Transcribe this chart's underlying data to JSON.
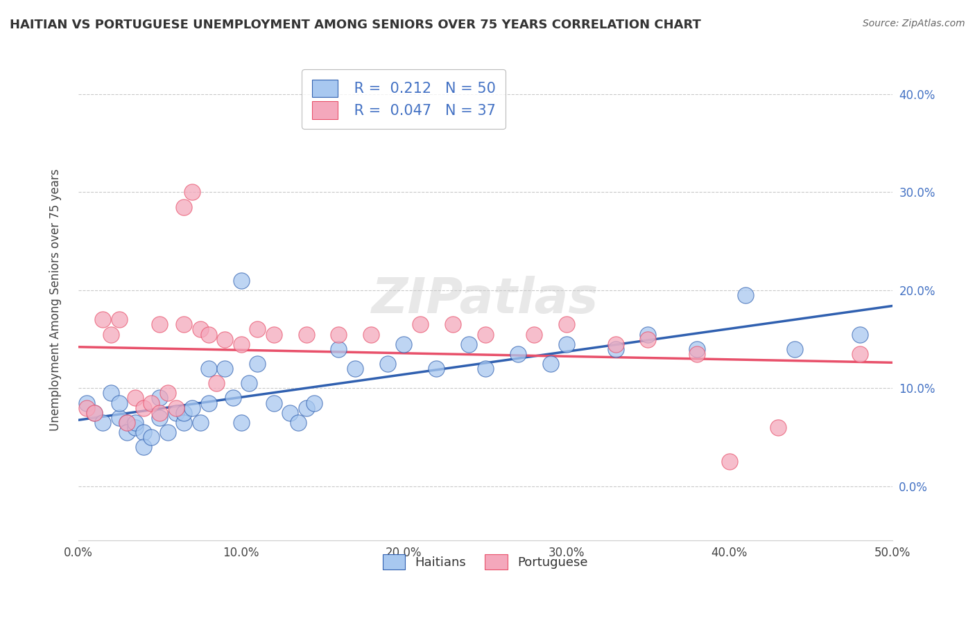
{
  "title": "HAITIAN VS PORTUGUESE UNEMPLOYMENT AMONG SENIORS OVER 75 YEARS CORRELATION CHART",
  "source": "Source: ZipAtlas.com",
  "ylabel": "Unemployment Among Seniors over 75 years",
  "xlim": [
    0.0,
    0.5
  ],
  "ylim": [
    -0.055,
    0.435
  ],
  "haitian_R": "0.212",
  "haitian_N": "50",
  "portuguese_R": "0.047",
  "portuguese_N": "37",
  "haitian_color": "#A8C8F0",
  "portuguese_color": "#F4A8BC",
  "haitian_line_color": "#3060B0",
  "portuguese_line_color": "#E8506A",
  "watermark": "ZIPatlas",
  "legend_label_haitian": "Haitians",
  "legend_label_portuguese": "Portuguese",
  "haitian_x": [
    0.005,
    0.01,
    0.015,
    0.02,
    0.025,
    0.025,
    0.03,
    0.03,
    0.035,
    0.035,
    0.04,
    0.04,
    0.045,
    0.05,
    0.05,
    0.055,
    0.06,
    0.065,
    0.065,
    0.07,
    0.075,
    0.08,
    0.08,
    0.09,
    0.095,
    0.1,
    0.1,
    0.105,
    0.11,
    0.12,
    0.13,
    0.135,
    0.14,
    0.145,
    0.16,
    0.17,
    0.19,
    0.2,
    0.22,
    0.24,
    0.25,
    0.27,
    0.29,
    0.3,
    0.33,
    0.35,
    0.38,
    0.41,
    0.44,
    0.48
  ],
  "haitian_y": [
    0.085,
    0.075,
    0.065,
    0.095,
    0.07,
    0.085,
    0.065,
    0.055,
    0.06,
    0.065,
    0.055,
    0.04,
    0.05,
    0.09,
    0.07,
    0.055,
    0.075,
    0.065,
    0.075,
    0.08,
    0.065,
    0.085,
    0.12,
    0.12,
    0.09,
    0.21,
    0.065,
    0.105,
    0.125,
    0.085,
    0.075,
    0.065,
    0.08,
    0.085,
    0.14,
    0.12,
    0.125,
    0.145,
    0.12,
    0.145,
    0.12,
    0.135,
    0.125,
    0.145,
    0.14,
    0.155,
    0.14,
    0.195,
    0.14,
    0.155
  ],
  "portuguese_x": [
    0.005,
    0.01,
    0.015,
    0.02,
    0.025,
    0.03,
    0.035,
    0.04,
    0.045,
    0.05,
    0.05,
    0.055,
    0.06,
    0.065,
    0.065,
    0.07,
    0.075,
    0.08,
    0.085,
    0.09,
    0.1,
    0.11,
    0.12,
    0.14,
    0.16,
    0.18,
    0.21,
    0.23,
    0.25,
    0.28,
    0.3,
    0.33,
    0.35,
    0.38,
    0.4,
    0.43,
    0.48
  ],
  "portuguese_y": [
    0.08,
    0.075,
    0.17,
    0.155,
    0.17,
    0.065,
    0.09,
    0.08,
    0.085,
    0.075,
    0.165,
    0.095,
    0.08,
    0.165,
    0.285,
    0.3,
    0.16,
    0.155,
    0.105,
    0.15,
    0.145,
    0.16,
    0.155,
    0.155,
    0.155,
    0.155,
    0.165,
    0.165,
    0.155,
    0.155,
    0.165,
    0.145,
    0.15,
    0.135,
    0.025,
    0.06,
    0.135
  ],
  "y_ticks": [
    0.0,
    0.1,
    0.2,
    0.3,
    0.4
  ],
  "x_ticks": [
    0.0,
    0.1,
    0.2,
    0.3,
    0.4,
    0.5
  ]
}
